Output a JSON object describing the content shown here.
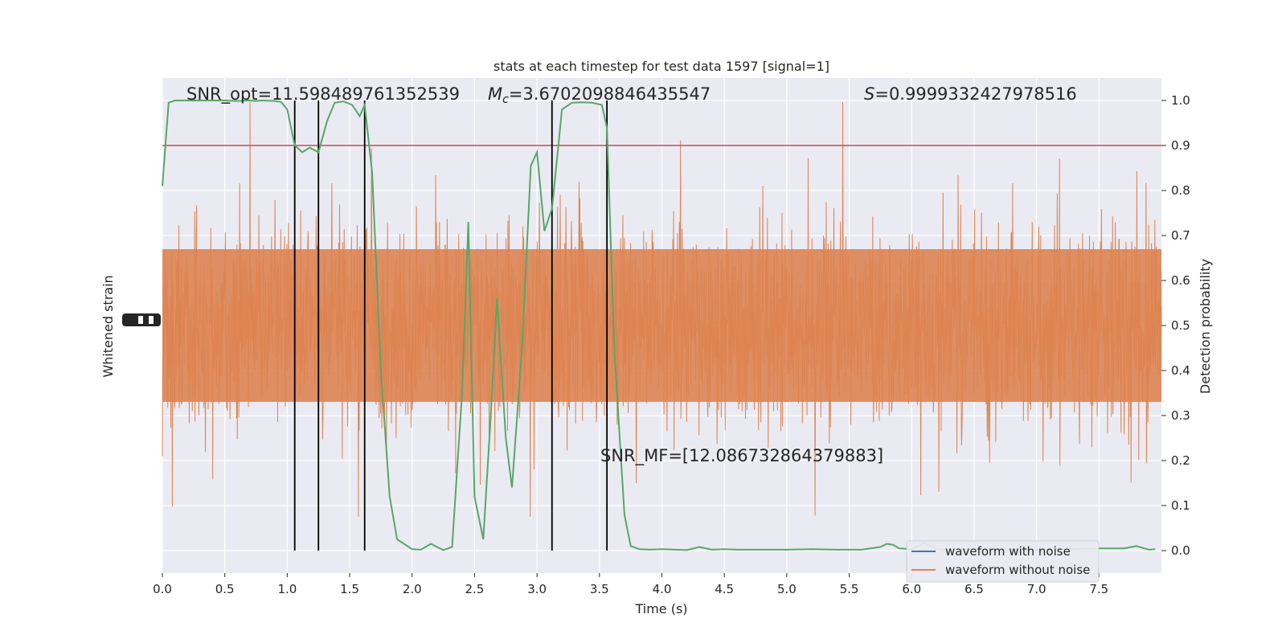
{
  "chart_data": {
    "type": "line",
    "title": "stats at each timestep for test data 1597 [signal=1]",
    "xlabel": "Time (s)",
    "ylabel_left": "Whitened strain",
    "ylabel_right": "Detection probability",
    "xlim": [
      0.0,
      8.0
    ],
    "ylim_right": [
      -0.05,
      1.05
    ],
    "x_ticks": [
      "0.0",
      "0.5",
      "1.0",
      "1.5",
      "2.0",
      "2.5",
      "3.0",
      "3.5",
      "4.0",
      "4.5",
      "5.0",
      "5.5",
      "6.0",
      "6.5",
      "7.0",
      "7.5"
    ],
    "y_ticks_right": [
      "0.0",
      "0.1",
      "0.2",
      "0.3",
      "0.4",
      "0.5",
      "0.6",
      "0.7",
      "0.8",
      "0.9",
      "1.0"
    ],
    "grid": true,
    "threshold": 0.9,
    "trigger_times": [
      1.06,
      1.25,
      1.62,
      3.12,
      3.56
    ],
    "annotations": {
      "snr_opt": "SNR_opt=11.598489761352539",
      "mc_symbol": "M",
      "mc_sub": "c",
      "mc_value": "=3.6702098846435547",
      "s_symbol": "S",
      "s_value": "=0.9999332427978516",
      "snr_mf": "SNR_MF=[12.086732864379883]"
    },
    "legend": {
      "position": "lower-right",
      "entries": [
        {
          "label": "waveform with noise",
          "color": "#4c72b0"
        },
        {
          "label": "waveform without noise",
          "color": "#dd8452"
        }
      ]
    },
    "series": [
      {
        "kind": "detection-probability",
        "color": "#55a868",
        "x": [
          0.0,
          0.05,
          0.1,
          0.2,
          0.3,
          0.4,
          0.5,
          0.6,
          0.7,
          0.75,
          0.8,
          0.9,
          0.95,
          1.0,
          1.06,
          1.12,
          1.18,
          1.25,
          1.32,
          1.38,
          1.45,
          1.52,
          1.58,
          1.62,
          1.68,
          1.75,
          1.82,
          1.88,
          2.0,
          2.07,
          2.15,
          2.25,
          2.32,
          2.4,
          2.45,
          2.5,
          2.57,
          2.63,
          2.68,
          2.75,
          2.8,
          2.88,
          2.95,
          3.0,
          3.06,
          3.12,
          3.2,
          3.28,
          3.36,
          3.44,
          3.52,
          3.56,
          3.62,
          3.7,
          3.75,
          3.82,
          3.9,
          4.0,
          4.1,
          4.2,
          4.3,
          4.4,
          4.5,
          4.6,
          4.8,
          5.0,
          5.2,
          5.4,
          5.6,
          5.75,
          5.8,
          5.85,
          5.9,
          6.0,
          6.1,
          6.2,
          6.3,
          6.5,
          6.7,
          6.9,
          7.0,
          7.2,
          7.5,
          7.7,
          7.8,
          7.9,
          7.95
        ],
        "y": [
          0.81,
          0.995,
          1.0,
          1.0,
          1.0,
          1.0,
          1.0,
          0.999,
          1.0,
          0.999,
          1.0,
          0.999,
          0.997,
          0.98,
          0.9,
          0.885,
          0.895,
          0.885,
          0.955,
          0.995,
          0.998,
          0.99,
          0.965,
          0.99,
          0.84,
          0.4,
          0.12,
          0.025,
          0.003,
          0.002,
          0.015,
          0.001,
          0.008,
          0.35,
          0.73,
          0.12,
          0.025,
          0.3,
          0.56,
          0.25,
          0.14,
          0.45,
          0.855,
          0.885,
          0.71,
          0.76,
          0.98,
          0.995,
          0.996,
          0.995,
          0.99,
          0.94,
          0.44,
          0.08,
          0.01,
          0.003,
          0.002,
          0.003,
          0.002,
          0.001,
          0.008,
          0.002,
          0.003,
          0.002,
          0.002,
          0.002,
          0.003,
          0.002,
          0.002,
          0.008,
          0.015,
          0.013,
          0.005,
          0.003,
          0.017,
          0.003,
          0.002,
          0.003,
          0.002,
          0.003,
          0.002,
          0.003,
          0.005,
          0.005,
          0.01,
          0.002,
          0.003
        ]
      }
    ]
  }
}
